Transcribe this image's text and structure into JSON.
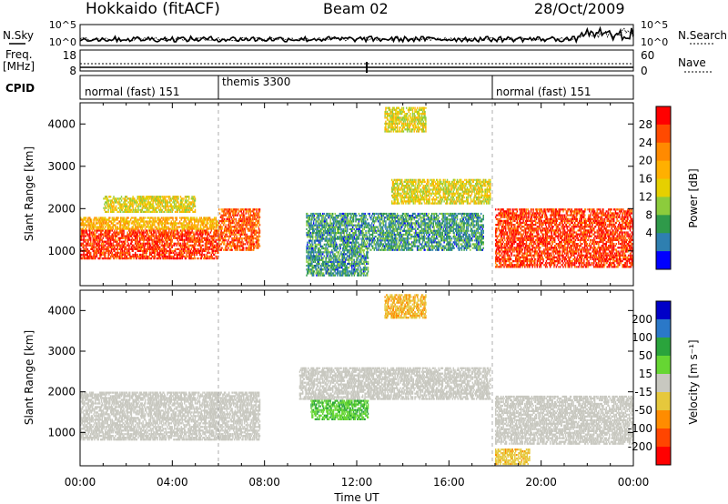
{
  "header": {
    "station": "Hokkaido (fitACF)",
    "beam": "Beam 02",
    "date": "28/Oct/2009"
  },
  "noise_panel": {
    "left_label": "N.Sky",
    "right_label": "N.Search",
    "left_ticks": [
      "10^5",
      "10^0"
    ],
    "right_ticks": [
      "10^5",
      "10^0"
    ]
  },
  "freq_panel": {
    "left_label_line1": "Freq.",
    "left_label_line2": "[MHz]",
    "right_label": "Nave",
    "left_ticks": [
      "18",
      "8"
    ],
    "right_ticks": [
      "60",
      "0"
    ]
  },
  "cpid_panel": {
    "label": "CPID",
    "segments": [
      {
        "text": "normal (fast) 151",
        "start_hour": 0,
        "end_hour": 6
      },
      {
        "text": "themis 3300",
        "start_hour": 6,
        "end_hour": 18
      },
      {
        "text": "normal (fast) 151",
        "start_hour": 18,
        "end_hour": 24
      }
    ]
  },
  "axes": {
    "xlabel": "Time UT",
    "x_ticks": [
      "00:00",
      "04:00",
      "08:00",
      "12:00",
      "16:00",
      "20:00",
      "00:00"
    ],
    "ylabel": "Slant Range [km]",
    "y_ticks": [
      "1000",
      "2000",
      "3000",
      "4000"
    ]
  },
  "power_colorbar": {
    "label": "Power [dB]",
    "ticks": [
      "28",
      "24",
      "20",
      "16",
      "12",
      "8",
      "4"
    ],
    "colors": [
      "#ff0000",
      "#ff4a00",
      "#ff8a00",
      "#ffb000",
      "#e6d000",
      "#8ccc3c",
      "#2f9a4a",
      "#2e7fb0",
      "#0000ff"
    ]
  },
  "velocity_colorbar": {
    "label": "Velocity [m s⁻¹]",
    "ticks": [
      "200",
      "100",
      "50",
      "15",
      "-15",
      "-50",
      "-100",
      "-200"
    ],
    "colors": [
      "#0000c8",
      "#2a78c8",
      "#2aa43c",
      "#66d633",
      "#c8c8c0",
      "#e6c83c",
      "#ff8c00",
      "#ff4500",
      "#ff0000"
    ]
  },
  "chart_data": [
    {
      "type": "heatmap",
      "title": "Power",
      "xlabel": "Time UT",
      "ylabel": "Slant Range [km]",
      "x_range_hours": [
        0,
        24
      ],
      "y_range_km": [
        180,
        4500
      ],
      "z_label": "Power [dB]",
      "z_range": [
        0,
        32
      ],
      "scatter_regions": [
        {
          "t0": 0.0,
          "t1": 6.0,
          "r0": 800,
          "r1": 1500,
          "z": 28
        },
        {
          "t0": 0.0,
          "t1": 6.0,
          "r0": 1500,
          "r1": 1800,
          "z": 20
        },
        {
          "t0": 1.0,
          "t1": 5.0,
          "r0": 1900,
          "r1": 2300,
          "z": 16
        },
        {
          "t0": 6.0,
          "t1": 7.8,
          "r0": 1000,
          "r1": 2000,
          "z": 26
        },
        {
          "t0": 9.8,
          "t1": 12.5,
          "r0": 400,
          "r1": 1900,
          "z": 8
        },
        {
          "t0": 13.5,
          "t1": 17.8,
          "r0": 2100,
          "r1": 2700,
          "z": 16
        },
        {
          "t0": 12.5,
          "t1": 17.5,
          "r0": 1000,
          "r1": 1900,
          "z": 8
        },
        {
          "t0": 18.0,
          "t1": 24.0,
          "r0": 600,
          "r1": 2000,
          "z": 28
        },
        {
          "t0": 13.2,
          "t1": 15.0,
          "r0": 3800,
          "r1": 4400,
          "z": 16
        }
      ]
    },
    {
      "type": "heatmap",
      "title": "Velocity",
      "xlabel": "Time UT",
      "ylabel": "Slant Range [km]",
      "x_range_hours": [
        0,
        24
      ],
      "y_range_km": [
        180,
        4500
      ],
      "z_label": "Velocity [m s⁻¹]",
      "z_range": [
        -200,
        200
      ],
      "scatter_regions": [
        {
          "t0": 0.0,
          "t1": 7.8,
          "r0": 800,
          "r1": 2000,
          "z": 0
        },
        {
          "t0": 9.5,
          "t1": 17.8,
          "r0": 1800,
          "r1": 2600,
          "z": 0
        },
        {
          "t0": 10.0,
          "t1": 12.5,
          "r0": 1300,
          "r1": 1800,
          "z": 60
        },
        {
          "t0": 18.0,
          "t1": 24.0,
          "r0": 700,
          "r1": 1900,
          "z": 0
        },
        {
          "t0": 13.2,
          "t1": 15.0,
          "r0": 3800,
          "r1": 4400,
          "z": -60
        },
        {
          "t0": 18.0,
          "t1": 19.5,
          "r0": 200,
          "r1": 600,
          "z": -50
        }
      ]
    }
  ]
}
